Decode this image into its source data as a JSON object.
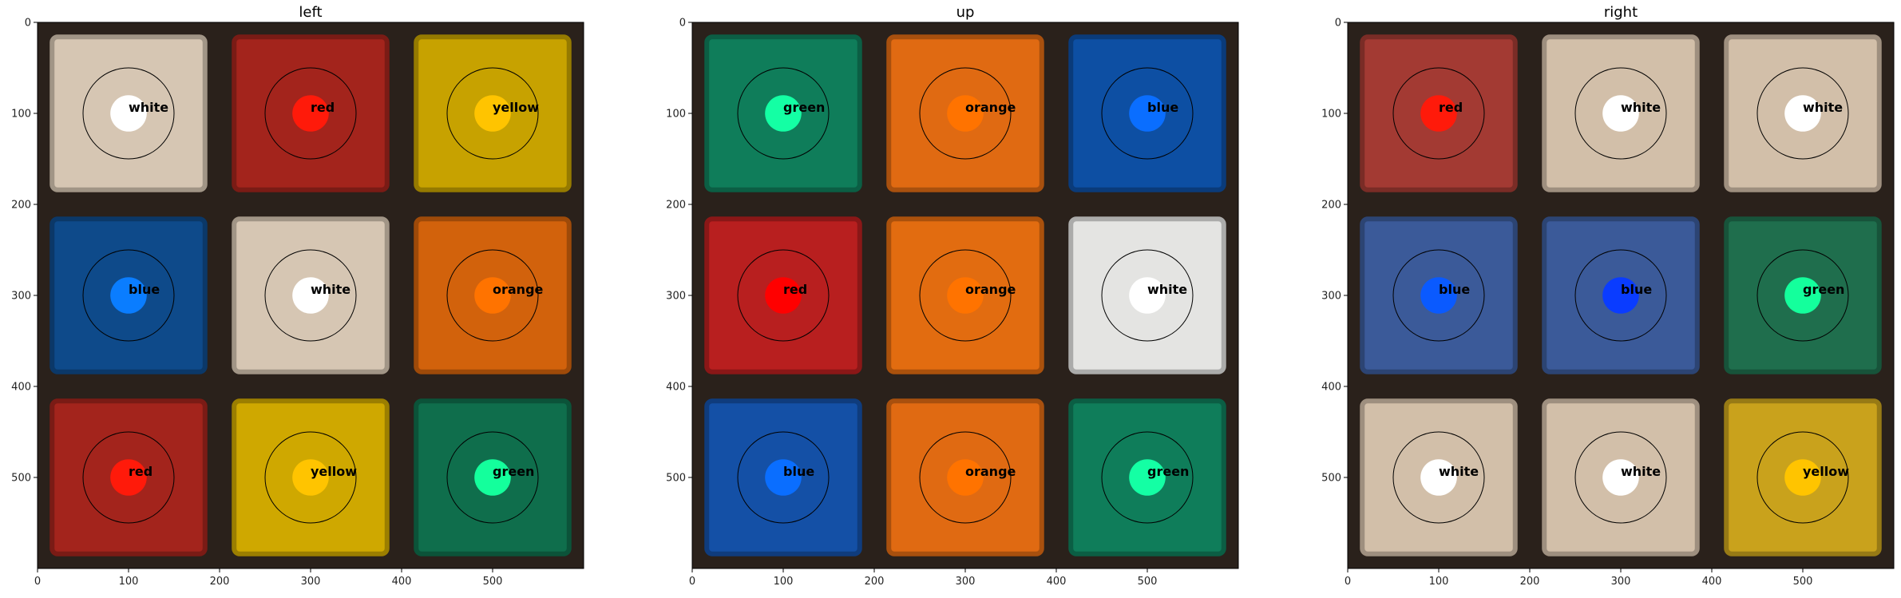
{
  "chart_data": [
    {
      "type": "scatter",
      "title": "left",
      "xlim": [
        0,
        600
      ],
      "ylim": [
        600,
        0
      ],
      "xticks": [
        "0",
        "100",
        "200",
        "300",
        "400",
        "500"
      ],
      "yticks": [
        "0",
        "100",
        "200",
        "300",
        "400",
        "500"
      ],
      "background_cells": [
        [
          "#d6c6b3",
          "#a3241c",
          "#c7a200"
        ],
        [
          "#0e4a8a",
          "#d6c6b3",
          "#d2620c"
        ],
        [
          "#a3241c",
          "#cfa800",
          "#0f6e4c"
        ]
      ],
      "points": [
        {
          "x": 100,
          "y": 100,
          "label": "white",
          "color": "#ffffff"
        },
        {
          "x": 300,
          "y": 100,
          "label": "red",
          "color": "#ff1a0a"
        },
        {
          "x": 500,
          "y": 100,
          "label": "yellow",
          "color": "#ffc400"
        },
        {
          "x": 100,
          "y": 300,
          "label": "blue",
          "color": "#0a7dff"
        },
        {
          "x": 300,
          "y": 300,
          "label": "white",
          "color": "#ffffff"
        },
        {
          "x": 500,
          "y": 300,
          "label": "orange",
          "color": "#ff7300"
        },
        {
          "x": 100,
          "y": 500,
          "label": "red",
          "color": "#ff1a0a"
        },
        {
          "x": 300,
          "y": 500,
          "label": "yellow",
          "color": "#ffc400"
        },
        {
          "x": 500,
          "y": 500,
          "label": "green",
          "color": "#14ff9c"
        }
      ]
    },
    {
      "type": "scatter",
      "title": "up",
      "xlim": [
        0,
        600
      ],
      "ylim": [
        600,
        0
      ],
      "xticks": [
        "0",
        "100",
        "200",
        "300",
        "400",
        "500"
      ],
      "yticks": [
        "0",
        "100",
        "200",
        "300",
        "400",
        "500"
      ],
      "background_cells": [
        [
          "#0f7d5a",
          "#e06a12",
          "#0d4fa3"
        ],
        [
          "#b81f1f",
          "#e26c10",
          "#e4e4e2"
        ],
        [
          "#1450a6",
          "#e06a12",
          "#0f7d5a"
        ]
      ],
      "points": [
        {
          "x": 100,
          "y": 100,
          "label": "green",
          "color": "#14ffa4"
        },
        {
          "x": 300,
          "y": 100,
          "label": "orange",
          "color": "#ff7300"
        },
        {
          "x": 500,
          "y": 100,
          "label": "blue",
          "color": "#0a6eff"
        },
        {
          "x": 100,
          "y": 300,
          "label": "red",
          "color": "#ff0000"
        },
        {
          "x": 300,
          "y": 300,
          "label": "orange",
          "color": "#ff7300"
        },
        {
          "x": 500,
          "y": 300,
          "label": "white",
          "color": "#ffffff"
        },
        {
          "x": 100,
          "y": 500,
          "label": "blue",
          "color": "#0a6eff"
        },
        {
          "x": 300,
          "y": 500,
          "label": "orange",
          "color": "#ff7300"
        },
        {
          "x": 500,
          "y": 500,
          "label": "green",
          "color": "#14ffa4"
        }
      ]
    },
    {
      "type": "scatter",
      "title": "right",
      "xlim": [
        0,
        600
      ],
      "ylim": [
        600,
        0
      ],
      "xticks": [
        "0",
        "100",
        "200",
        "300",
        "400",
        "500"
      ],
      "yticks": [
        "0",
        "100",
        "200",
        "300",
        "400",
        "500"
      ],
      "background_cells": [
        [
          "#a33a33",
          "#d2bfa9",
          "#d2bfa9"
        ],
        [
          "#3b5a99",
          "#3b5a99",
          "#1f6e4d"
        ],
        [
          "#d2bfa9",
          "#d2bfa9",
          "#c9a21c"
        ]
      ],
      "points": [
        {
          "x": 100,
          "y": 100,
          "label": "red",
          "color": "#ff1a0a"
        },
        {
          "x": 300,
          "y": 100,
          "label": "white",
          "color": "#ffffff"
        },
        {
          "x": 500,
          "y": 100,
          "label": "white",
          "color": "#ffffff"
        },
        {
          "x": 100,
          "y": 300,
          "label": "blue",
          "color": "#0a5aff"
        },
        {
          "x": 300,
          "y": 300,
          "label": "blue",
          "color": "#0a3cff"
        },
        {
          "x": 500,
          "y": 300,
          "label": "green",
          "color": "#14ff9c"
        },
        {
          "x": 100,
          "y": 500,
          "label": "white",
          "color": "#ffffff"
        },
        {
          "x": 300,
          "y": 500,
          "label": "white",
          "color": "#ffffff"
        },
        {
          "x": 500,
          "y": 500,
          "label": "yellow",
          "color": "#ffc400"
        }
      ]
    }
  ]
}
